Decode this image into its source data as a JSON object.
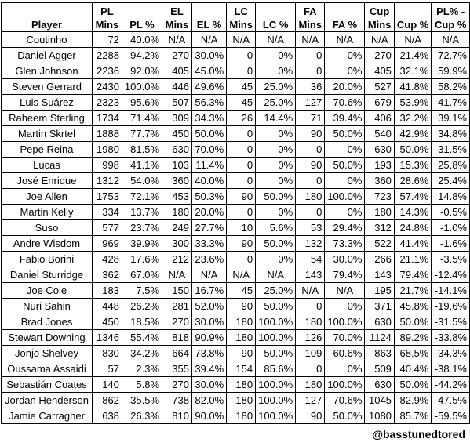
{
  "headers": [
    {
      "line1": "",
      "line2": "Player"
    },
    {
      "line1": "PL",
      "line2": "Mins"
    },
    {
      "line1": "",
      "line2": "PL %"
    },
    {
      "line1": "EL",
      "line2": "Mins"
    },
    {
      "line1": "",
      "line2": "EL %"
    },
    {
      "line1": "LC",
      "line2": "Mins"
    },
    {
      "line1": "",
      "line2": "LC %"
    },
    {
      "line1": "FA",
      "line2": "Mins"
    },
    {
      "line1": "",
      "line2": "FA %"
    },
    {
      "line1": "Cup",
      "line2": "Mins"
    },
    {
      "line1": "",
      "line2": "Cup %"
    },
    {
      "line1": "PL% -",
      "line2": "Cup %"
    }
  ],
  "rows": [
    [
      "Coutinho",
      "72",
      "40.0%",
      "N/A",
      "N/A",
      "N/A",
      "N/A",
      "N/A",
      "N/A",
      "N/A",
      "N/A",
      "N/A"
    ],
    [
      "Daniel Agger",
      "2288",
      "94.2%",
      "270",
      "30.0%",
      "0",
      "0%",
      "0",
      "0%",
      "270",
      "21.4%",
      "72.7%"
    ],
    [
      "Glen Johnson",
      "2236",
      "92.0%",
      "405",
      "45.0%",
      "0",
      "0%",
      "0",
      "0%",
      "405",
      "32.1%",
      "59.9%"
    ],
    [
      "Steven Gerrard",
      "2430",
      "100.0%",
      "446",
      "49.6%",
      "45",
      "25.0%",
      "36",
      "20.0%",
      "527",
      "41.8%",
      "58.2%"
    ],
    [
      "Luis Suárez",
      "2323",
      "95.6%",
      "507",
      "56.3%",
      "45",
      "25.0%",
      "127",
      "70.6%",
      "679",
      "53.9%",
      "41.7%"
    ],
    [
      "Raheem Sterling",
      "1734",
      "71.4%",
      "309",
      "34.3%",
      "26",
      "14.4%",
      "71",
      "39.4%",
      "406",
      "32.2%",
      "39.1%"
    ],
    [
      "Martin Skrtel",
      "1888",
      "77.7%",
      "450",
      "50.0%",
      "0",
      "0%",
      "90",
      "50.0%",
      "540",
      "42.9%",
      "34.8%"
    ],
    [
      "Pepe Reina",
      "1980",
      "81.5%",
      "630",
      "70.0%",
      "0",
      "0%",
      "0",
      "0%",
      "630",
      "50.0%",
      "31.5%"
    ],
    [
      "Lucas",
      "998",
      "41.1%",
      "103",
      "11.4%",
      "0",
      "0%",
      "90",
      "50.0%",
      "193",
      "15.3%",
      "25.8%"
    ],
    [
      "José Enrique",
      "1312",
      "54.0%",
      "360",
      "40.0%",
      "0",
      "0%",
      "0",
      "0%",
      "360",
      "28.6%",
      "25.4%"
    ],
    [
      "Joe Allen",
      "1753",
      "72.1%",
      "453",
      "50.3%",
      "90",
      "50.0%",
      "180",
      "100.0%",
      "723",
      "57.4%",
      "14.8%"
    ],
    [
      "Martin Kelly",
      "334",
      "13.7%",
      "180",
      "20.0%",
      "0",
      "0%",
      "0",
      "0%",
      "180",
      "14.3%",
      "-0.5%"
    ],
    [
      "Suso",
      "577",
      "23.7%",
      "249",
      "27.7%",
      "10",
      "5.6%",
      "53",
      "29.4%",
      "312",
      "24.8%",
      "-1.0%"
    ],
    [
      "Andre Wisdom",
      "969",
      "39.9%",
      "300",
      "33.3%",
      "90",
      "50.0%",
      "132",
      "73.3%",
      "522",
      "41.4%",
      "-1.6%"
    ],
    [
      "Fabio Borini",
      "428",
      "17.6%",
      "212",
      "23.6%",
      "0",
      "0%",
      "54",
      "30.0%",
      "266",
      "21.1%",
      "-3.5%"
    ],
    [
      "Daniel Sturridge",
      "362",
      "67.0%",
      "N/A",
      "N/A",
      "N/A",
      "N/A",
      "143",
      "79.4%",
      "143",
      "79.4%",
      "-12.4%"
    ],
    [
      "Joe Cole",
      "183",
      "7.5%",
      "150",
      "16.7%",
      "45",
      "25.0%",
      "N/A",
      "N/A",
      "195",
      "21.7%",
      "-14.1%"
    ],
    [
      "Nuri Sahin",
      "448",
      "26.2%",
      "281",
      "52.0%",
      "90",
      "50.0%",
      "0",
      "0%",
      "371",
      "45.8%",
      "-19.6%"
    ],
    [
      "Brad Jones",
      "450",
      "18.5%",
      "270",
      "30.0%",
      "180",
      "100.0%",
      "180",
      "100.0%",
      "630",
      "50.0%",
      "-31.5%"
    ],
    [
      "Stewart Downing",
      "1346",
      "55.4%",
      "818",
      "90.9%",
      "180",
      "100.0%",
      "126",
      "70.0%",
      "1124",
      "89.2%",
      "-33.8%"
    ],
    [
      "Jonjo Shelvey",
      "830",
      "34.2%",
      "664",
      "73.8%",
      "90",
      "50.0%",
      "109",
      "60.6%",
      "863",
      "68.5%",
      "-34.3%"
    ],
    [
      "Oussama Assaidi",
      "57",
      "2.3%",
      "355",
      "39.4%",
      "154",
      "85.6%",
      "0",
      "0%",
      "509",
      "40.4%",
      "-38.1%"
    ],
    [
      "Sebastián Coates",
      "140",
      "5.8%",
      "270",
      "30.0%",
      "180",
      "100.0%",
      "180",
      "100.0%",
      "630",
      "50.0%",
      "-44.2%"
    ],
    [
      "Jordan Henderson",
      "862",
      "35.5%",
      "738",
      "82.0%",
      "180",
      "100.0%",
      "127",
      "70.6%",
      "1045",
      "82.9%",
      "-47.5%"
    ],
    [
      "Jamie Carragher",
      "638",
      "26.3%",
      "810",
      "90.0%",
      "180",
      "100.0%",
      "90",
      "50.0%",
      "1080",
      "85.7%",
      "-59.5%"
    ]
  ],
  "watermark": "@basstunedtored"
}
